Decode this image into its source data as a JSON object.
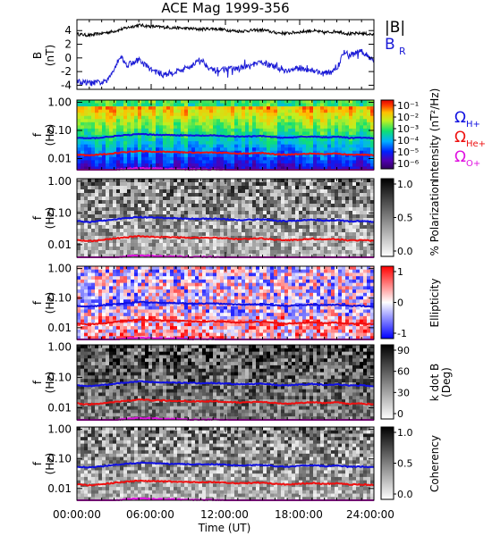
{
  "title": "ACE Mag 1999-356",
  "xlabel": "Time (UT)",
  "x_ticks": [
    "00:00:00",
    "06:00:00",
    "12:00:00",
    "18:00:00",
    "24:00:00"
  ],
  "colors": {
    "B_total": "#000000",
    "B_R": "#1a1ad6",
    "omega_H": "#1010e0",
    "omega_He": "#ee1010",
    "omega_O": "#e010e0"
  },
  "chart_data": [
    {
      "type": "line",
      "panel": "magnetic-field",
      "ylabel_main": "B",
      "ylabel_unit": "(nT)",
      "ylim": [
        -4.6,
        5.6
      ],
      "y_ticks": [
        "4",
        "2",
        "0",
        "-2",
        "-4"
      ],
      "xlim_hours": [
        0,
        24
      ],
      "legend": [
        {
          "label": "|B|",
          "color": "#000000"
        },
        {
          "label": "B",
          "sub": "R",
          "color": "#1a1ad6"
        }
      ],
      "series": [
        {
          "name": "|B|",
          "color": "#000000",
          "x_hours": [
            0,
            1,
            2,
            3,
            4,
            5,
            6,
            7,
            8,
            9,
            10,
            11,
            12,
            13,
            14,
            15,
            16,
            17,
            18,
            19,
            20,
            21,
            22,
            23,
            24
          ],
          "values": [
            3.5,
            3.3,
            3.6,
            3.9,
            4.4,
            4.8,
            4.6,
            4.5,
            4.4,
            4.3,
            4.2,
            4.3,
            4.1,
            3.9,
            4.0,
            4.1,
            3.7,
            3.6,
            3.8,
            4.0,
            3.7,
            3.9,
            3.5,
            3.6,
            3.4
          ]
        },
        {
          "name": "B_R",
          "color": "#1a1ad6",
          "x_hours": [
            0,
            1,
            2,
            2.5,
            3,
            3.5,
            4,
            5,
            6,
            7,
            8,
            9,
            10,
            11,
            12,
            13,
            14,
            15,
            16,
            17,
            18,
            19,
            20,
            21,
            21.5,
            22,
            23,
            24
          ],
          "values": [
            -3.5,
            -3.7,
            -3.6,
            -3.3,
            -1.5,
            0.3,
            -1.0,
            -0.3,
            -1.7,
            -2.5,
            -2.0,
            -1.4,
            -0.2,
            -1.9,
            -1.6,
            -1.6,
            -1.2,
            -0.6,
            -1.4,
            -1.9,
            -1.5,
            -1.8,
            -2.3,
            -1.8,
            0.8,
            0.4,
            0.9,
            -0.3
          ]
        }
      ]
    },
    {
      "type": "heatmap",
      "panel": "power-spectrum",
      "ylabel_main": "f",
      "ylabel_unit": "(Hz)",
      "ylim_log": [
        0.004,
        1.2
      ],
      "y_ticks": [
        "1.00",
        "0.10",
        "0.01"
      ],
      "colorbar": {
        "label": "Intensity (nT²/Hz)",
        "scale": "jet",
        "ticks": [
          "10⁻¹",
          "10⁻²",
          "10⁻³",
          "10⁻⁴",
          "10⁻⁵",
          "10⁻⁶"
        ]
      },
      "gyro_legend": [
        {
          "label": "Ω",
          "sub": "H+",
          "color": "#1010e0"
        },
        {
          "label": "Ω",
          "sub": "He+",
          "color": "#ee1010"
        },
        {
          "label": "Ω",
          "sub": "O+",
          "color": "#e010e0"
        }
      ]
    },
    {
      "type": "heatmap",
      "panel": "polarization",
      "ylabel_main": "f",
      "ylabel_unit": "(Hz)",
      "ylim_log": [
        0.004,
        1.2
      ],
      "y_ticks": [
        "1.00",
        "0.10",
        "0.01"
      ],
      "colorbar": {
        "label": "% Polarization",
        "scale": "gray",
        "ticks": [
          "1.0",
          "0.5",
          "0.0"
        ]
      }
    },
    {
      "type": "heatmap",
      "panel": "ellipticity",
      "ylabel_main": "f",
      "ylabel_unit": "(Hz)",
      "ylim_log": [
        0.004,
        1.2
      ],
      "y_ticks": [
        "1.00",
        "0.10",
        "0.01"
      ],
      "colorbar": {
        "label": "Ellipticity",
        "scale": "bwr",
        "ticks": [
          "1",
          "0",
          "-1"
        ]
      }
    },
    {
      "type": "heatmap",
      "panel": "k-dot-b",
      "ylabel_main": "f",
      "ylabel_unit": "(Hz)",
      "ylim_log": [
        0.004,
        1.2
      ],
      "y_ticks": [
        "1.00",
        "0.10",
        "0.01"
      ],
      "colorbar": {
        "label": "k dot B",
        "label2": "(Deg)",
        "scale": "gray",
        "ticks": [
          "90",
          "60",
          "30",
          "0"
        ]
      }
    },
    {
      "type": "heatmap",
      "panel": "coherency",
      "ylabel_main": "f",
      "ylabel_unit": "(Hz)",
      "ylim_log": [
        0.004,
        1.2
      ],
      "y_ticks": [
        "1.00",
        "0.10",
        "0.01"
      ],
      "colorbar": {
        "label": "Coherency",
        "scale": "gray",
        "ticks": [
          "1.0",
          "0.5",
          "0.0"
        ]
      }
    }
  ],
  "gyrofrequency_lines": {
    "x_hours": [
      0,
      1,
      2,
      3,
      4,
      5,
      6,
      7,
      8,
      9,
      10,
      11,
      12,
      13,
      14,
      15,
      16,
      17,
      18,
      19,
      20,
      21,
      22,
      23,
      24
    ],
    "omega_H": [
      0.055,
      0.052,
      0.056,
      0.062,
      0.068,
      0.074,
      0.071,
      0.069,
      0.068,
      0.066,
      0.065,
      0.066,
      0.063,
      0.06,
      0.061,
      0.063,
      0.057,
      0.055,
      0.058,
      0.061,
      0.057,
      0.06,
      0.054,
      0.055,
      0.052
    ],
    "omega_He": [
      0.0138,
      0.013,
      0.014,
      0.0155,
      0.017,
      0.0185,
      0.0178,
      0.0173,
      0.017,
      0.0165,
      0.0163,
      0.0165,
      0.0158,
      0.015,
      0.0153,
      0.0158,
      0.0143,
      0.0138,
      0.0145,
      0.0153,
      0.0143,
      0.015,
      0.0135,
      0.0138,
      0.013
    ],
    "omega_O": [
      0.0034,
      0.0033,
      0.0035,
      0.0039,
      0.0043,
      0.0046,
      0.0045,
      0.0043,
      0.0043,
      0.0041,
      0.0041,
      0.0041,
      0.0039,
      0.0038,
      0.0038,
      0.0039,
      0.0036,
      0.0034,
      0.0036,
      0.0038,
      0.0036,
      0.0038,
      0.0034,
      0.0034,
      0.0033
    ]
  }
}
